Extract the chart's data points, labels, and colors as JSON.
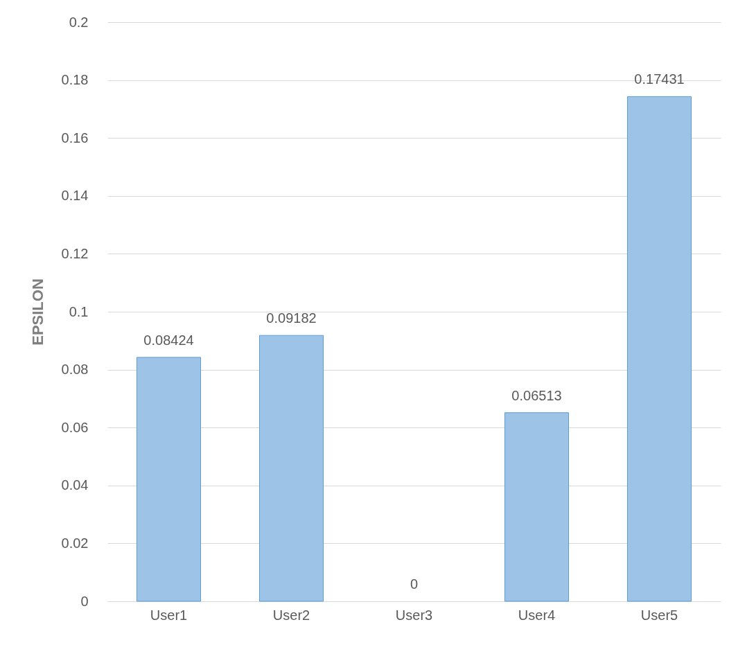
{
  "chart_data": {
    "type": "bar",
    "ylabel": "EPSILON",
    "categories": [
      "User1",
      "User2",
      "User3",
      "User4",
      "User5"
    ],
    "values": [
      0.08424,
      0.09182,
      0,
      0.06513,
      0.17431
    ],
    "color": "#9dc3e6",
    "ylim": [
      0,
      0.2
    ],
    "yticks": [
      0,
      0.02,
      0.04,
      0.06,
      0.08,
      0.1,
      0.12,
      0.14,
      0.16,
      0.18,
      0.2
    ],
    "grid": "y",
    "data_labels": true
  }
}
